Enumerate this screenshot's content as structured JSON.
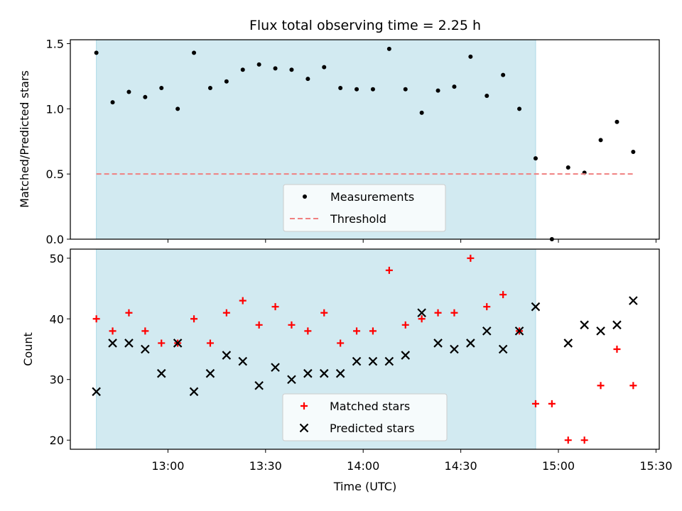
{
  "chart_data": [
    {
      "type": "scatter",
      "title": "Flux total observing time = 2.25 h",
      "xlabel": "",
      "ylabel": "Matched/Predicted stars",
      "ylim": [
        0,
        1.53
      ],
      "yticks": [
        "0.0",
        "0.5",
        "1.0",
        "1.5"
      ],
      "xlim": [
        "12:30",
        "15:31"
      ],
      "xticks": [
        "13:00",
        "13:30",
        "14:00",
        "14:30",
        "15:00",
        "15:30"
      ],
      "shaded_span": [
        "12:38",
        "14:53"
      ],
      "shade_color": "#add8e6",
      "legend": {
        "position": "lower center",
        "entries": [
          "Measurements",
          "Threshold"
        ]
      },
      "series": [
        {
          "name": "Measurements",
          "color": "#000000",
          "marker": "dot",
          "points": [
            [
              "12:38",
              1.43
            ],
            [
              "12:43",
              1.05
            ],
            [
              "12:48",
              1.13
            ],
            [
              "12:53",
              1.09
            ],
            [
              "12:58",
              1.16
            ],
            [
              "13:03",
              1.0
            ],
            [
              "13:08",
              1.43
            ],
            [
              "13:13",
              1.16
            ],
            [
              "13:18",
              1.21
            ],
            [
              "13:23",
              1.3
            ],
            [
              "13:28",
              1.34
            ],
            [
              "13:33",
              1.31
            ],
            [
              "13:38",
              1.3
            ],
            [
              "13:43",
              1.23
            ],
            [
              "13:48",
              1.32
            ],
            [
              "13:53",
              1.16
            ],
            [
              "13:58",
              1.15
            ],
            [
              "14:03",
              1.15
            ],
            [
              "14:08",
              1.46
            ],
            [
              "14:13",
              1.15
            ],
            [
              "14:18",
              0.97
            ],
            [
              "14:23",
              1.14
            ],
            [
              "14:28",
              1.17
            ],
            [
              "14:33",
              1.4
            ],
            [
              "14:38",
              1.1
            ],
            [
              "14:43",
              1.26
            ],
            [
              "14:48",
              1.0
            ],
            [
              "14:53",
              0.62
            ],
            [
              "14:58",
              0.0
            ],
            [
              "15:03",
              0.55
            ],
            [
              "15:08",
              0.51
            ],
            [
              "15:13",
              0.76
            ],
            [
              "15:18",
              0.9
            ],
            [
              "15:23",
              0.67
            ]
          ]
        },
        {
          "name": "Threshold",
          "color": "#f08080",
          "style": "dashed",
          "points": [
            [
              "12:38",
              0.5
            ],
            [
              "15:23",
              0.5
            ]
          ]
        }
      ]
    },
    {
      "type": "scatter",
      "title": "",
      "xlabel": "Time (UTC)",
      "ylabel": "Count",
      "ylim": [
        18.5,
        51.5
      ],
      "yticks": [
        "20",
        "30",
        "40",
        "50"
      ],
      "xlim": [
        "12:30",
        "15:31"
      ],
      "xticks": [
        "13:00",
        "13:30",
        "14:00",
        "14:30",
        "15:00",
        "15:30"
      ],
      "shaded_span": [
        "12:38",
        "14:53"
      ],
      "shade_color": "#add8e6",
      "legend": {
        "position": "lower center",
        "entries": [
          "Matched stars",
          "Predicted stars"
        ]
      },
      "series": [
        {
          "name": "Matched stars",
          "color": "#ff0000",
          "marker": "plus",
          "points": [
            [
              "12:38",
              40
            ],
            [
              "12:43",
              38
            ],
            [
              "12:48",
              41
            ],
            [
              "12:53",
              38
            ],
            [
              "12:58",
              36
            ],
            [
              "13:03",
              36
            ],
            [
              "13:08",
              40
            ],
            [
              "13:13",
              36
            ],
            [
              "13:18",
              41
            ],
            [
              "13:23",
              43
            ],
            [
              "13:28",
              39
            ],
            [
              "13:33",
              42
            ],
            [
              "13:38",
              39
            ],
            [
              "13:43",
              38
            ],
            [
              "13:48",
              41
            ],
            [
              "13:53",
              36
            ],
            [
              "13:58",
              38
            ],
            [
              "14:03",
              38
            ],
            [
              "14:08",
              48
            ],
            [
              "14:13",
              39
            ],
            [
              "14:18",
              40
            ],
            [
              "14:23",
              41
            ],
            [
              "14:28",
              41
            ],
            [
              "14:33",
              50
            ],
            [
              "14:38",
              42
            ],
            [
              "14:43",
              44
            ],
            [
              "14:48",
              38
            ],
            [
              "14:53",
              26
            ],
            [
              "14:58",
              26
            ],
            [
              "15:03",
              20
            ],
            [
              "15:08",
              20
            ],
            [
              "15:13",
              29
            ],
            [
              "15:18",
              35
            ],
            [
              "15:23",
              29
            ]
          ]
        },
        {
          "name": "Predicted stars",
          "color": "#000000",
          "marker": "x",
          "points": [
            [
              "12:38",
              28
            ],
            [
              "12:43",
              36
            ],
            [
              "12:48",
              36
            ],
            [
              "12:53",
              35
            ],
            [
              "12:58",
              31
            ],
            [
              "13:03",
              36
            ],
            [
              "13:08",
              28
            ],
            [
              "13:13",
              31
            ],
            [
              "13:18",
              34
            ],
            [
              "13:23",
              33
            ],
            [
              "13:28",
              29
            ],
            [
              "13:33",
              32
            ],
            [
              "13:38",
              30
            ],
            [
              "13:43",
              31
            ],
            [
              "13:48",
              31
            ],
            [
              "13:53",
              31
            ],
            [
              "13:58",
              33
            ],
            [
              "14:03",
              33
            ],
            [
              "14:08",
              33
            ],
            [
              "14:13",
              34
            ],
            [
              "14:18",
              41
            ],
            [
              "14:23",
              36
            ],
            [
              "14:28",
              35
            ],
            [
              "14:33",
              36
            ],
            [
              "14:38",
              38
            ],
            [
              "14:43",
              35
            ],
            [
              "14:48",
              38
            ],
            [
              "14:53",
              42
            ],
            [
              "15:03",
              36
            ],
            [
              "15:08",
              39
            ],
            [
              "15:13",
              38
            ],
            [
              "15:18",
              39
            ],
            [
              "15:23",
              43
            ]
          ]
        }
      ]
    }
  ]
}
